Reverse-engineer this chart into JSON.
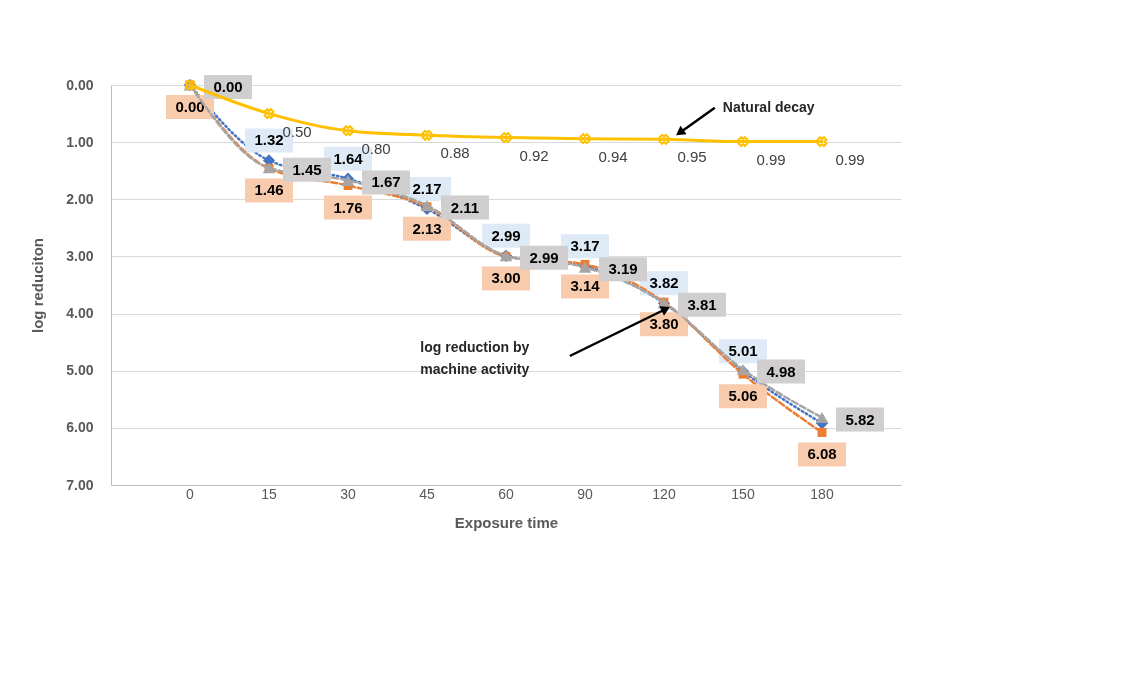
{
  "chart_data": {
    "type": "line",
    "xlabel": "Exposure time",
    "ylabel": "log  reduciton",
    "categories": [
      "0",
      "15",
      "30",
      "45",
      "60",
      "90",
      "120",
      "150",
      "180"
    ],
    "series": [
      {
        "name": null,
        "color": "#4472c4",
        "marker": "diamond",
        "line_style": "dotted",
        "values": [
          0,
          1.32,
          1.64,
          2.17,
          2.99,
          3.17,
          3.82,
          5.01,
          5.92
        ],
        "value_labels": [
          null,
          "1.32",
          "1.64",
          "2.17",
          "2.99",
          "3.17",
          "3.82",
          "5.01",
          null
        ]
      },
      {
        "name": null,
        "color": "#ed7d31",
        "marker": "square",
        "line_style": "dashed",
        "values": [
          0,
          1.46,
          1.76,
          2.13,
          3.0,
          3.14,
          3.8,
          5.06,
          6.08
        ],
        "value_labels": [
          "0.00",
          "1.46",
          "1.76",
          "2.13",
          "3.00",
          "3.14",
          "3.80",
          "5.06",
          "6.08"
        ]
      },
      {
        "name": null,
        "color": "#a5a5a5",
        "marker": "triangle",
        "line_style": "dashed",
        "values": [
          0,
          1.45,
          1.67,
          2.11,
          2.99,
          3.19,
          3.81,
          4.98,
          5.82
        ],
        "value_labels": [
          "0.00",
          "1.45",
          "1.67",
          "2.11",
          "2.99",
          "3.19",
          "3.81",
          "4.98",
          "5.82"
        ]
      },
      {
        "name": null,
        "color": "#ffc000",
        "marker": "cross",
        "line_style": "solid",
        "values": [
          0,
          0.5,
          0.8,
          0.88,
          0.92,
          0.94,
          0.95,
          0.99,
          0.99
        ],
        "value_labels": [
          null,
          "0.50",
          "0.80",
          "0.88",
          "0.92",
          "0.94",
          "0.95",
          "0.99",
          "0.99"
        ]
      }
    ],
    "ylim": [
      7,
      0
    ],
    "yticks": [
      {
        "value": 0,
        "label": "0.00"
      },
      {
        "value": 1,
        "label": "1.00"
      },
      {
        "value": 2,
        "label": "2.00"
      },
      {
        "value": 3,
        "label": "3.00"
      },
      {
        "value": 4,
        "label": "4.00"
      },
      {
        "value": 5,
        "label": "5.00"
      },
      {
        "value": 6,
        "label": "6.00"
      },
      {
        "value": 7,
        "label": "7.00"
      }
    ],
    "grid": "y",
    "annotations": [
      {
        "text": "Natural decay",
        "y": 0.94
      },
      "log reduction by\nmachine activity"
    ]
  }
}
